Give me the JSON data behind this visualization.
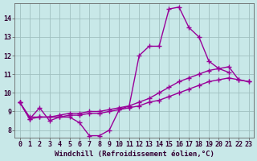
{
  "background_color": "#c8e8e8",
  "grid_color": "#a0c0c0",
  "line_color": "#990099",
  "marker": "+",
  "markersize": 4,
  "linewidth": 1.0,
  "xlabel": "Windchill (Refroidissement éolien,°C)",
  "xlabel_fontsize": 6.5,
  "tick_fontsize": 6,
  "xlim": [
    -0.5,
    23.5
  ],
  "ylim": [
    7.6,
    14.8
  ],
  "yticks": [
    8,
    9,
    10,
    11,
    12,
    13,
    14
  ],
  "xticks": [
    0,
    1,
    2,
    3,
    4,
    5,
    6,
    7,
    8,
    9,
    10,
    11,
    12,
    13,
    14,
    15,
    16,
    17,
    18,
    19,
    20,
    21,
    22,
    23
  ],
  "series": [
    {
      "x": [
        0,
        1,
        2,
        3,
        4,
        5,
        6,
        7,
        8,
        9,
        10,
        11,
        12,
        13,
        14,
        15,
        16,
        17,
        18,
        19,
        20,
        21
      ],
      "y": [
        9.5,
        8.6,
        9.2,
        8.5,
        8.7,
        8.7,
        8.4,
        7.7,
        7.7,
        8.0,
        9.1,
        9.3,
        12.0,
        12.5,
        12.5,
        14.5,
        14.6,
        13.5,
        13.0,
        11.7,
        11.3,
        11.1
      ]
    },
    {
      "x": [
        0,
        1,
        2,
        3,
        4,
        5,
        6,
        7,
        8,
        9,
        10,
        11,
        12,
        13,
        14,
        15,
        16,
        17,
        18,
        19,
        20,
        21,
        22,
        23
      ],
      "y": [
        9.5,
        8.6,
        8.7,
        8.7,
        8.8,
        8.9,
        8.9,
        9.0,
        9.0,
        9.1,
        9.2,
        9.3,
        9.5,
        9.7,
        10.0,
        10.3,
        10.6,
        10.8,
        11.0,
        11.2,
        11.3,
        11.4,
        10.7,
        10.6
      ]
    },
    {
      "x": [
        0,
        1,
        2,
        3,
        4,
        5,
        6,
        7,
        8,
        9,
        10,
        11,
        12,
        13,
        14,
        15,
        16,
        17,
        18,
        19,
        20,
        21,
        22,
        23
      ],
      "y": [
        9.5,
        8.7,
        8.7,
        8.7,
        8.7,
        8.8,
        8.8,
        8.9,
        8.9,
        9.0,
        9.1,
        9.2,
        9.3,
        9.5,
        9.6,
        9.8,
        10.0,
        10.2,
        10.4,
        10.6,
        10.7,
        10.8,
        10.7,
        10.6
      ]
    }
  ]
}
